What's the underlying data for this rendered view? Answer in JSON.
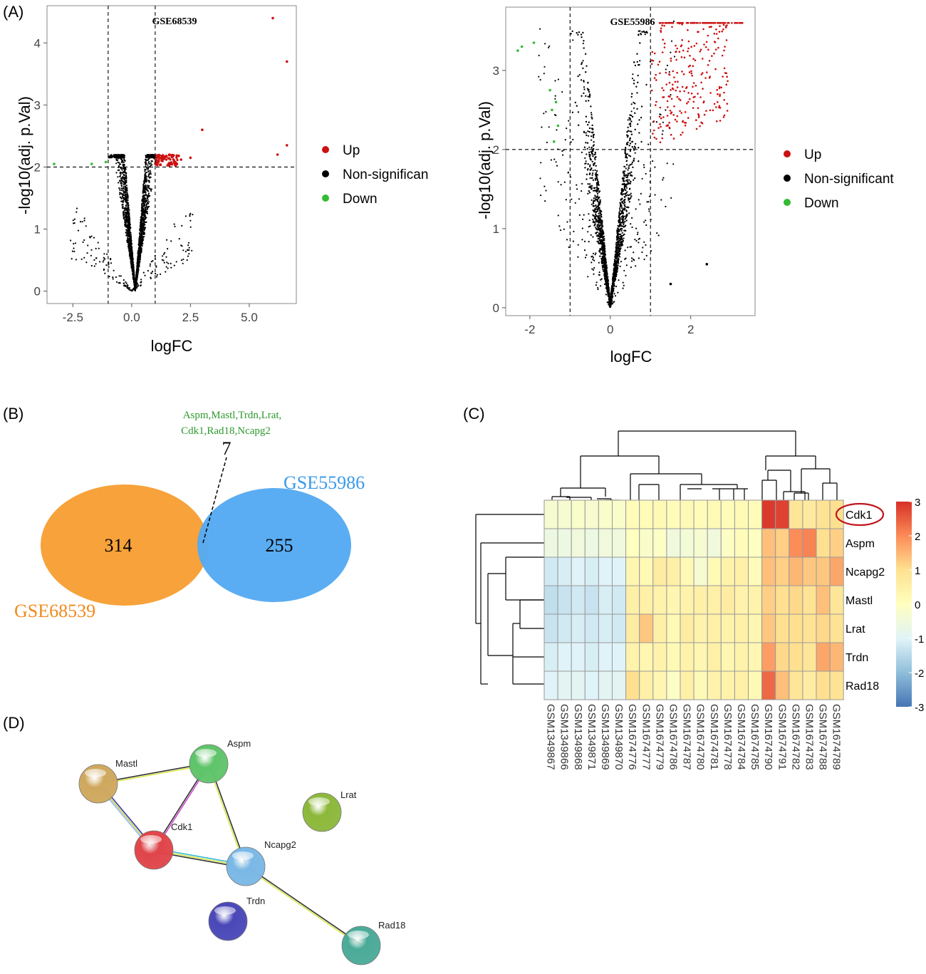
{
  "panels": {
    "A": {
      "label": "(A)"
    },
    "B": {
      "label": "(B)"
    },
    "C": {
      "label": "(C)"
    },
    "D": {
      "label": "(D)"
    }
  },
  "colors": {
    "up": "#cc1111",
    "nonsig": "#000000",
    "down": "#33bb33",
    "venn_left": "#f7a23a",
    "venn_right": "#55aaf2",
    "venn_left_text": "#f08a1c",
    "venn_right_text": "#3a9ae8",
    "venn_genes_text": "#2e9a2e"
  },
  "chart_data": [
    {
      "type": "scatter",
      "title": "GSE68539",
      "xlabel": "logFC",
      "ylabel": "-log10(adj. p.Val)",
      "xlim": [
        -3.6,
        7.0
      ],
      "ylim": [
        -0.2,
        4.6
      ],
      "x_ticks": [
        "-2.5",
        "0.0",
        "2.5",
        "5.0"
      ],
      "x_tick_values": [
        -2.5,
        0.0,
        2.5,
        5.0
      ],
      "y_ticks": [
        "0",
        "1",
        "2",
        "3",
        "4"
      ],
      "y_tick_values": [
        0,
        1,
        2,
        3,
        4
      ],
      "vlines": [
        -1,
        1
      ],
      "hline": 2,
      "grid": false,
      "legend_position": "right",
      "legend": [
        {
          "name": "Up",
          "color": "#cc1111"
        },
        {
          "name": "Non-significan",
          "color": "#000000"
        },
        {
          "name": "Down",
          "color": "#33bb33"
        }
      ],
      "series": [
        {
          "name": "Up",
          "points": [
            [
              6.0,
              4.4
            ],
            [
              6.6,
              3.7
            ],
            [
              6.6,
              2.35
            ],
            [
              3.0,
              2.6
            ],
            [
              6.2,
              2.2
            ],
            [
              1.4,
              2.15
            ],
            [
              1.8,
              2.1
            ],
            [
              2.1,
              2.12
            ],
            [
              2.5,
              2.15
            ],
            [
              1.6,
              2.2
            ],
            [
              2.0,
              2.18
            ],
            [
              1.3,
              2.1
            ]
          ]
        },
        {
          "name": "Down",
          "points": [
            [
              -3.3,
              2.05
            ],
            [
              -1.7,
              2.05
            ],
            [
              -1.1,
              2.08
            ]
          ]
        },
        {
          "name": "Non-significant",
          "points": []
        }
      ]
    },
    {
      "type": "scatter",
      "title": "GSE55986",
      "xlabel": "logFC",
      "ylabel": "-log10(adj. p.Val)",
      "xlim": [
        -2.6,
        3.6
      ],
      "ylim": [
        -0.1,
        3.8
      ],
      "x_ticks": [
        "-2",
        "0",
        "2"
      ],
      "x_tick_values": [
        -2,
        0,
        2
      ],
      "y_ticks": [
        "0",
        "1",
        "2",
        "3"
      ],
      "y_tick_values": [
        0,
        1,
        2,
        3
      ],
      "vlines": [
        -1,
        1
      ],
      "hline": 2,
      "grid": false,
      "legend_position": "right",
      "legend": [
        {
          "name": "Up",
          "color": "#cc1111"
        },
        {
          "name": "Non-significant",
          "color": "#000000"
        },
        {
          "name": "Down",
          "color": "#33bb33"
        }
      ],
      "series": [
        {
          "name": "Down",
          "points": [
            [
              -2.2,
              3.3
            ],
            [
              -2.3,
              3.25
            ],
            [
              -1.9,
              3.35
            ],
            [
              -1.5,
              2.75
            ],
            [
              -1.35,
              2.6
            ],
            [
              -1.45,
              2.5
            ],
            [
              -1.3,
              2.3
            ],
            [
              -1.4,
              2.1
            ]
          ]
        },
        {
          "name": "Up",
          "points": []
        },
        {
          "name": "Non-significant",
          "points": [
            [
              1.5,
              0.3
            ],
            [
              2.4,
              0.55
            ]
          ]
        }
      ]
    },
    {
      "type": "heatmap",
      "genes": [
        "Cdk1",
        "Aspm",
        "Ncapg2",
        "Mastl",
        "Lrat",
        "Trdn",
        "Rad18"
      ],
      "samples": [
        "GSM1349867",
        "GSM1349866",
        "GSM1349868",
        "GSM1349871",
        "GSM1349869",
        "GSM1349870",
        "GSM1674776",
        "GSM1674777",
        "GSM1674779",
        "GSM1674786",
        "GSM1674787",
        "GSM1674780",
        "GSM1674781",
        "GSM1674778",
        "GSM1674784",
        "GSM1674785",
        "GSM1674790",
        "GSM1674791",
        "GSM1674782",
        "GSM1674783",
        "GSM1674788",
        "GSM1674789"
      ],
      "values": [
        [
          -0.3,
          -0.3,
          -0.2,
          -0.3,
          -0.2,
          -0.2,
          0.1,
          0.1,
          0.2,
          0.1,
          0.2,
          0.1,
          0.2,
          0.1,
          0.2,
          0.1,
          2.9,
          2.8,
          0.8,
          0.7,
          0.9,
          1.0
        ],
        [
          -0.6,
          -0.6,
          -0.5,
          -0.6,
          -0.5,
          -0.5,
          0.0,
          -0.2,
          -0.1,
          -0.5,
          -0.4,
          -0.3,
          -0.5,
          -0.1,
          0.1,
          0.0,
          1.4,
          1.2,
          2.0,
          2.1,
          1.0,
          1.2
        ],
        [
          -1.2,
          -1.1,
          -1.0,
          -1.1,
          -1.0,
          -1.0,
          0.3,
          0.2,
          0.6,
          0.5,
          0.2,
          -0.3,
          0.2,
          0.4,
          0.5,
          0.1,
          1.4,
          1.2,
          1.5,
          1.3,
          1.3,
          1.7
        ],
        [
          -1.4,
          -1.3,
          -1.2,
          -1.3,
          -1.1,
          -1.2,
          0.5,
          0.5,
          0.4,
          0.3,
          0.4,
          0.5,
          0.5,
          0.6,
          0.4,
          0.4,
          1.2,
          1.0,
          1.1,
          0.9,
          1.4,
          0.8
        ],
        [
          -1.3,
          -1.2,
          -1.1,
          -1.2,
          -1.1,
          -1.2,
          0.6,
          1.3,
          0.5,
          0.2,
          0.6,
          0.4,
          0.5,
          0.4,
          0.5,
          0.3,
          1.3,
          1.0,
          1.0,
          0.9,
          1.1,
          0.9
        ],
        [
          -1.1,
          -1.0,
          -1.0,
          -1.1,
          -1.0,
          -1.0,
          0.4,
          0.3,
          0.4,
          0.2,
          0.4,
          0.3,
          0.5,
          0.3,
          0.4,
          0.3,
          1.8,
          1.1,
          1.0,
          0.8,
          1.7,
          1.5
        ],
        [
          -1.0,
          -0.9,
          -0.9,
          -1.0,
          -0.9,
          -0.9,
          1.0,
          0.5,
          0.3,
          -0.1,
          0.5,
          0.2,
          0.4,
          0.4,
          0.5,
          0.2,
          2.4,
          1.4,
          0.8,
          0.6,
          1.0,
          0.9
        ]
      ],
      "color_scale": {
        "min": -3,
        "max": 3,
        "ticks": [
          "3",
          "2",
          "1",
          "0",
          "-1",
          "-2",
          "-3"
        ]
      },
      "highlight_gene": "Cdk1"
    }
  ],
  "venn": {
    "left": {
      "name": "GSE68539",
      "count": "314"
    },
    "right": {
      "name": "GSE55986",
      "count": "255"
    },
    "overlap": {
      "count": "7",
      "genes_line1": "Aspm,Mastl,Trdn,Lrat,",
      "genes_line2": "Cdk1,Rad18,Ncapg2"
    }
  },
  "network": {
    "nodes": [
      {
        "name": "Mastl",
        "color": "#cfa85e"
      },
      {
        "name": "Aspm",
        "color": "#5fc46a"
      },
      {
        "name": "Cdk1",
        "color": "#e0454a"
      },
      {
        "name": "Ncapg2",
        "color": "#7ab8e6"
      },
      {
        "name": "Lrat",
        "color": "#8cb83a"
      },
      {
        "name": "Trdn",
        "color": "#4a48b8"
      },
      {
        "name": "Rad18",
        "color": "#4aaa98"
      }
    ],
    "edges": [
      [
        "Mastl",
        "Aspm"
      ],
      [
        "Mastl",
        "Cdk1"
      ],
      [
        "Aspm",
        "Cdk1"
      ],
      [
        "Aspm",
        "Ncapg2"
      ],
      [
        "Cdk1",
        "Ncapg2"
      ],
      [
        "Ncapg2",
        "Rad18"
      ]
    ]
  }
}
